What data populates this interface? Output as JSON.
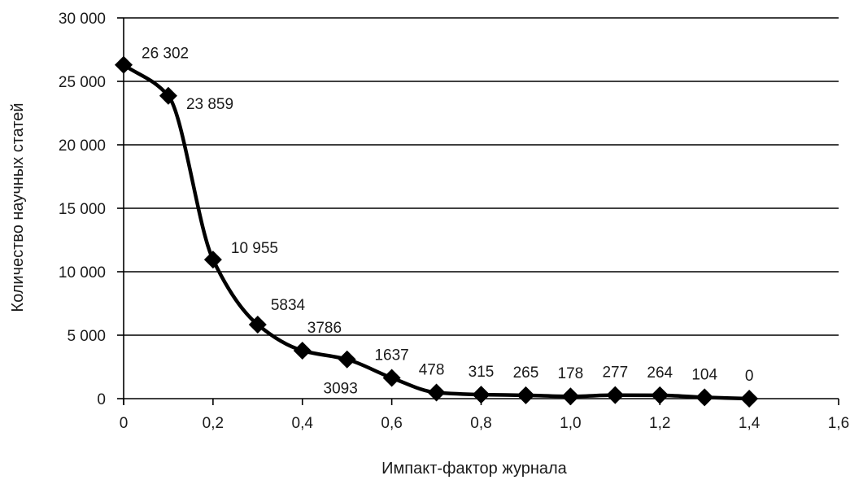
{
  "chart_data": {
    "type": "line",
    "title": "",
    "xlabel": "Импакт-фактор журнала",
    "ylabel": "Количество научных статей",
    "xlim": [
      0,
      1.6
    ],
    "ylim": [
      0,
      30000
    ],
    "x_ticks": [
      {
        "value": 0,
        "label": "0"
      },
      {
        "value": 0.2,
        "label": "0,2"
      },
      {
        "value": 0.4,
        "label": "0,4"
      },
      {
        "value": 0.6,
        "label": "0,6"
      },
      {
        "value": 0.8,
        "label": "0,8"
      },
      {
        "value": 1.0,
        "label": "1,0"
      },
      {
        "value": 1.2,
        "label": "1,2"
      },
      {
        "value": 1.4,
        "label": "1,4"
      },
      {
        "value": 1.6,
        "label": "1,6"
      }
    ],
    "y_ticks": [
      {
        "value": 0,
        "label": "0"
      },
      {
        "value": 5000,
        "label": "5 000"
      },
      {
        "value": 10000,
        "label": "10 000"
      },
      {
        "value": 15000,
        "label": "15 000"
      },
      {
        "value": 20000,
        "label": "20 000"
      },
      {
        "value": 25000,
        "label": "25 000"
      },
      {
        "value": 30000,
        "label": "30 000"
      }
    ],
    "grid": "horizontal",
    "marker": "diamond",
    "smooth": true,
    "series": [
      {
        "points": [
          {
            "x": 0.0,
            "y": 26302,
            "label": "26 302"
          },
          {
            "x": 0.1,
            "y": 23859,
            "label": "23 859"
          },
          {
            "x": 0.2,
            "y": 10955,
            "label": "10 955"
          },
          {
            "x": 0.3,
            "y": 5834,
            "label": "5834"
          },
          {
            "x": 0.4,
            "y": 3786,
            "label": "3786"
          },
          {
            "x": 0.5,
            "y": 3093,
            "label": "3093"
          },
          {
            "x": 0.6,
            "y": 1637,
            "label": "1637"
          },
          {
            "x": 0.7,
            "y": 478,
            "label": "478"
          },
          {
            "x": 0.8,
            "y": 315,
            "label": "315"
          },
          {
            "x": 0.9,
            "y": 265,
            "label": "265"
          },
          {
            "x": 1.0,
            "y": 178,
            "label": "178"
          },
          {
            "x": 1.1,
            "y": 277,
            "label": "277"
          },
          {
            "x": 1.2,
            "y": 264,
            "label": "264"
          },
          {
            "x": 1.3,
            "y": 104,
            "label": "104"
          },
          {
            "x": 1.4,
            "y": 0,
            "label": "0"
          }
        ]
      }
    ]
  }
}
